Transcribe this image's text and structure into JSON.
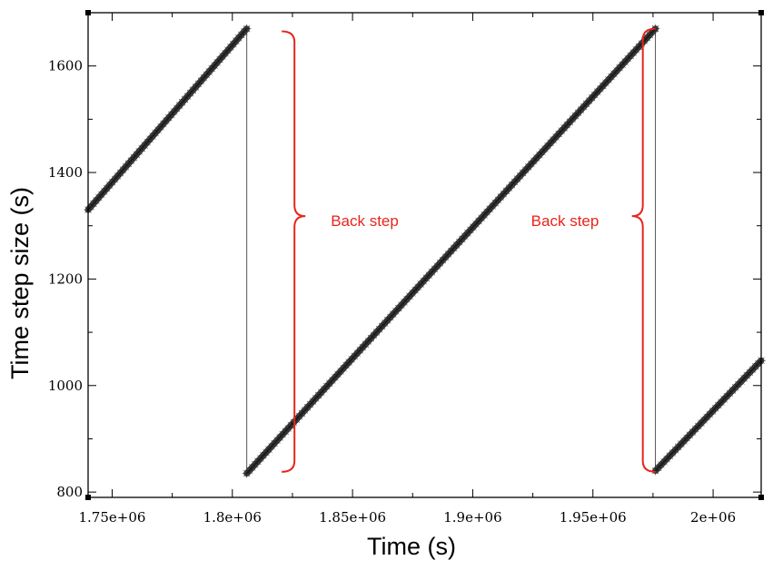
{
  "chart_data": {
    "type": "line",
    "title": "",
    "xlabel": "Time (s)",
    "ylabel": "Time step size (s)",
    "xlim": [
      1740000,
      2020000
    ],
    "ylim": [
      790,
      1700
    ],
    "x_ticks": [
      {
        "value": 1750000,
        "label": "1.75e+06"
      },
      {
        "value": 1800000,
        "label": "1.8e+06"
      },
      {
        "value": 1850000,
        "label": "1.85e+06"
      },
      {
        "value": 1900000,
        "label": "1.9e+06"
      },
      {
        "value": 1950000,
        "label": "1.95e+06"
      },
      {
        "value": 2000000,
        "label": "2e+06"
      }
    ],
    "y_ticks": [
      {
        "value": 800,
        "label": "800"
      },
      {
        "value": 1000,
        "label": "1000"
      },
      {
        "value": 1200,
        "label": "1200"
      },
      {
        "value": 1400,
        "label": "1400"
      },
      {
        "value": 1600,
        "label": "1600"
      }
    ],
    "grid": false,
    "legend": "none",
    "series": [
      {
        "marker": "star",
        "color": "#000000",
        "segments": [
          {
            "x": [
              1740000,
              1806000
            ],
            "y": [
              1330,
              1670
            ]
          },
          {
            "x": [
              1806000,
              1976000
            ],
            "y": [
              835,
              1670
            ]
          },
          {
            "x": [
              1976000,
              2020000
            ],
            "y": [
              840,
              1047
            ]
          }
        ],
        "drops": [
          {
            "x": 1806000,
            "from": 1670,
            "to": 835
          },
          {
            "x": 1976000,
            "from": 1670,
            "to": 840
          }
        ]
      }
    ],
    "annotations": [
      {
        "text": "Back step",
        "color": "#e8251d",
        "x": 1813000,
        "y_top": 1665,
        "y_bottom": 838,
        "y_mid": 1318,
        "side": "right-of-bracket"
      },
      {
        "text": "Back step",
        "color": "#e8251d",
        "x": 1970000,
        "y_top": 1670,
        "y_bottom": 838,
        "y_mid": 1318,
        "side": "left-of-bracket"
      }
    ]
  }
}
